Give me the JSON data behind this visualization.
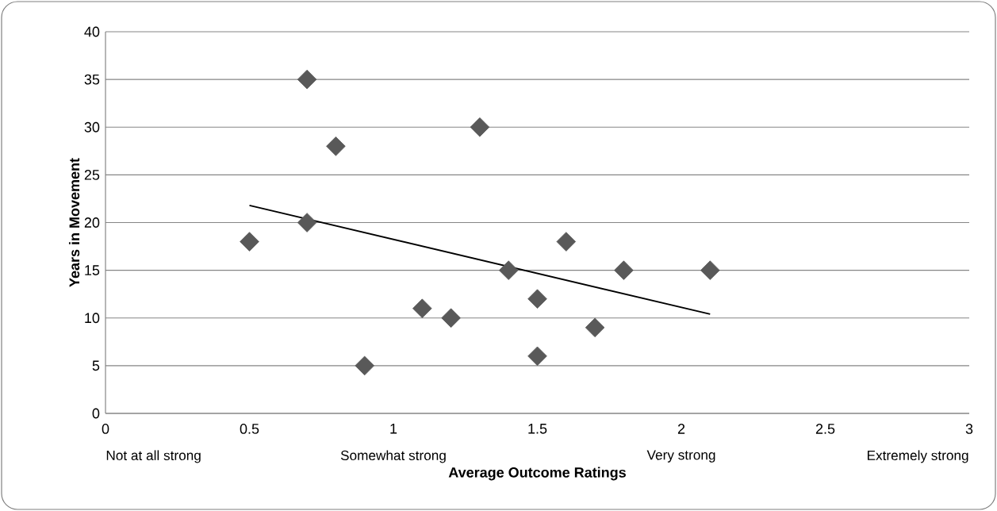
{
  "chart_data": {
    "type": "scatter",
    "xlabel": "Average Outcome Ratings",
    "ylabel": "Years in Movement",
    "series": [
      {
        "color": "#595959",
        "marker": "diamond",
        "x": [
          0.5,
          0.7,
          0.7,
          0.8,
          0.9,
          1.1,
          1.2,
          1.3,
          1.4,
          1.5,
          1.5,
          1.6,
          1.7,
          1.8,
          2.1
        ],
        "values": [
          18,
          35,
          20,
          28,
          5,
          11,
          10,
          30,
          15,
          12,
          6,
          18,
          9,
          15,
          15
        ]
      },
      {
        "type": "line",
        "color": "#000000",
        "marker": "none",
        "x": [
          0.5,
          2.1
        ],
        "values": [
          21.8,
          10.4
        ]
      }
    ],
    "xlim": [
      0,
      3
    ],
    "xticks": [
      0,
      0.5,
      1,
      1.5,
      2,
      2.5,
      3
    ],
    "ylim": [
      0,
      40
    ],
    "yticks": [
      0,
      5,
      10,
      15,
      20,
      25,
      30,
      35,
      40
    ],
    "grid": "y",
    "annotations": [
      "Not at all strong",
      "Somewhat strong",
      "Very strong",
      "Extremely strong"
    ]
  }
}
